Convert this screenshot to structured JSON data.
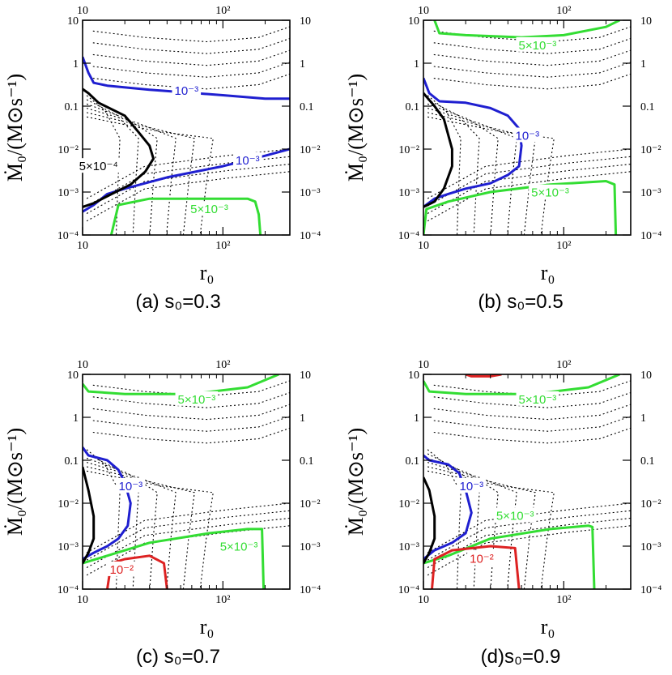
{
  "figure": {
    "name": "accretion-contour-panels"
  },
  "chart_data": [
    {
      "type": "contour",
      "panel": "a",
      "caption": "(a) s₀=0.3",
      "xlabel": "r₀",
      "ylabel": "Ṁ₀/(M⊙s⁻¹)",
      "xlim": [
        10,
        300
      ],
      "ylim": [
        0.0001,
        10
      ],
      "xscale": "log",
      "yscale": "log",
      "x_ticks": [
        "10",
        "10²"
      ],
      "y_ticks": [
        "10⁻⁴",
        "10⁻³",
        "10⁻²",
        "0.1",
        "1",
        "10"
      ],
      "contours": [
        {
          "label": "10⁻³",
          "color": "#1f1fd0",
          "label_pos": [
            55,
            0.2
          ],
          "lines": [
            [
              [
                10,
                1.4
              ],
              [
                11,
                0.6
              ],
              [
                12,
                0.35
              ],
              [
                15,
                0.3
              ],
              [
                30,
                0.24
              ],
              [
                100,
                0.18
              ],
              [
                200,
                0.15
              ],
              [
                300,
                0.15
              ]
            ],
            [
              [
                10,
                0.00035
              ],
              [
                12,
                0.0005
              ],
              [
                15,
                0.0009
              ],
              [
                20,
                0.0012
              ],
              [
                40,
                0.0022
              ],
              [
                100,
                0.004
              ],
              [
                200,
                0.007
              ],
              [
                300,
                0.01
              ]
            ]
          ]
        },
        {
          "label": "10⁻³",
          "color": "#1f1fd0",
          "label_pos": [
            150,
            0.0048
          ],
          "lines": []
        },
        {
          "label": "5×10⁻⁴",
          "color": "#000000",
          "label_pos": [
            13,
            0.0035
          ],
          "lines": [
            [
              [
                10,
                0.25
              ],
              [
                11,
                0.2
              ],
              [
                13,
                0.12
              ],
              [
                20,
                0.06
              ],
              [
                25,
                0.025
              ],
              [
                30,
                0.012
              ],
              [
                32,
                0.006
              ],
              [
                28,
                0.003
              ],
              [
                22,
                0.0015
              ],
              [
                15,
                0.0008
              ],
              [
                12,
                0.00055
              ],
              [
                10,
                0.00045
              ]
            ]
          ]
        },
        {
          "label": "5×10⁻³",
          "color": "#33dd33",
          "label_pos": [
            80,
            0.00035
          ],
          "lines": [
            [
              [
                16,
                0.0001
              ],
              [
                18,
                0.0005
              ],
              [
                30,
                0.0007
              ],
              [
                100,
                0.0007
              ],
              [
                150,
                0.0007
              ],
              [
                170,
                0.0006
              ],
              [
                180,
                0.0003
              ],
              [
                185,
                0.0001
              ]
            ]
          ]
        }
      ]
    },
    {
      "type": "contour",
      "panel": "b",
      "caption": "(b) s₀=0.5",
      "xlabel": "r₀",
      "ylabel": "Ṁ₀/(M⊙s⁻¹)",
      "xlim": [
        10,
        300
      ],
      "ylim": [
        0.0001,
        10
      ],
      "xscale": "log",
      "yscale": "log",
      "x_ticks": [
        "10",
        "10²"
      ],
      "y_ticks": [
        "10⁻⁴",
        "10⁻³",
        "10⁻²",
        "0.1",
        "1",
        "10"
      ],
      "contours": [
        {
          "label": "10⁻³",
          "color": "#1f1fd0",
          "label_pos": [
            55,
            0.018
          ],
          "lines": [
            [
              [
                10,
                0.45
              ],
              [
                11,
                0.2
              ],
              [
                13,
                0.13
              ],
              [
                20,
                0.12
              ],
              [
                30,
                0.09
              ],
              [
                40,
                0.06
              ],
              [
                48,
                0.03
              ],
              [
                50,
                0.012
              ],
              [
                48,
                0.004
              ],
              [
                40,
                0.0025
              ],
              [
                30,
                0.0016
              ],
              [
                20,
                0.0012
              ],
              [
                15,
                0.0009
              ],
              [
                12,
                0.0007
              ],
              [
                10,
                0.00045
              ]
            ]
          ]
        },
        {
          "label": "5×10⁻³",
          "color": "#33dd33",
          "label_pos": [
            65,
            2.3
          ],
          "lines": [
            [
              [
                12,
                10
              ],
              [
                13,
                5
              ],
              [
                20,
                4.5
              ],
              [
                50,
                4
              ],
              [
                100,
                4.5
              ],
              [
                200,
                7
              ],
              [
                250,
                10
              ]
            ],
            [
              [
                10,
                0.0001
              ],
              [
                10.5,
                0.0004
              ],
              [
                15,
                0.0006
              ],
              [
                30,
                0.001
              ],
              [
                80,
                0.0015
              ],
              [
                200,
                0.0018
              ],
              [
                230,
                0.0015
              ],
              [
                235,
                0.0001
              ]
            ]
          ]
        },
        {
          "label": "5×10⁻³",
          "color": "#33dd33",
          "label_pos": [
            80,
            0.00085
          ],
          "lines": []
        },
        {
          "label": "",
          "color": "#000000",
          "label_pos": null,
          "lines": [
            [
              [
                10,
                0.2
              ],
              [
                12,
                0.1
              ],
              [
                14,
                0.05
              ],
              [
                16,
                0.01
              ],
              [
                16,
                0.004
              ],
              [
                14,
                0.0012
              ],
              [
                12,
                0.0006
              ],
              [
                10,
                0.00045
              ]
            ]
          ]
        }
      ]
    },
    {
      "type": "contour",
      "panel": "c",
      "caption": "(c) s₀=0.7",
      "xlabel": "r₀",
      "ylabel": "Ṁ₀/(M⊙s⁻¹)",
      "xlim": [
        10,
        300
      ],
      "ylim": [
        0.0001,
        10
      ],
      "xscale": "log",
      "yscale": "log",
      "x_ticks": [
        "10",
        "10²"
      ],
      "y_ticks": [
        "10⁻⁴",
        "10⁻³",
        "10⁻²",
        "0.1",
        "1",
        "10"
      ],
      "contours": [
        {
          "label": "5×10⁻³",
          "color": "#33dd33",
          "label_pos": [
            65,
            2.3
          ],
          "lines": [
            [
              [
                10,
                6
              ],
              [
                11,
                4
              ],
              [
                20,
                3.5
              ],
              [
                60,
                3.5
              ],
              [
                150,
                5
              ],
              [
                250,
                10
              ]
            ],
            [
              [
                10,
                0.0004
              ],
              [
                15,
                0.0006
              ],
              [
                30,
                0.0012
              ],
              [
                80,
                0.002
              ],
              [
                150,
                0.0025
              ],
              [
                190,
                0.0025
              ],
              [
                195,
                0.0001
              ]
            ]
          ]
        },
        {
          "label": "5×10⁻³",
          "color": "#33dd33",
          "label_pos": [
            130,
            0.00085
          ],
          "lines": []
        },
        {
          "label": "10⁻³",
          "color": "#1f1fd0",
          "label_pos": [
            22,
            0.022
          ],
          "lines": [
            [
              [
                10,
                0.2
              ],
              [
                11,
                0.13
              ],
              [
                15,
                0.1
              ],
              [
                18,
                0.06
              ],
              [
                20,
                0.03
              ],
              [
                22,
                0.01
              ],
              [
                21,
                0.003
              ],
              [
                18,
                0.0015
              ],
              [
                15,
                0.001
              ],
              [
                12,
                0.0007
              ],
              [
                10,
                0.0005
              ]
            ]
          ]
        },
        {
          "label": "10⁻²",
          "color": "#dd2222",
          "label_pos": [
            19,
            0.00025
          ],
          "lines": [
            [
              [
                15,
                0.0001
              ],
              [
                16,
                0.0004
              ],
              [
                20,
                0.0005
              ],
              [
                30,
                0.0006
              ],
              [
                38,
                0.0004
              ],
              [
                40,
                0.0001
              ]
            ]
          ]
        },
        {
          "label": "",
          "color": "#000000",
          "label_pos": null,
          "lines": [
            [
              [
                10,
                0.07
              ],
              [
                11,
                0.02
              ],
              [
                12,
                0.005
              ],
              [
                12,
                0.0015
              ],
              [
                11,
                0.0007
              ],
              [
                10,
                0.0004
              ]
            ]
          ]
        }
      ]
    },
    {
      "type": "contour",
      "panel": "d",
      "caption": "(d)s₀=0.9",
      "xlabel": "r₀",
      "ylabel": "Ṁ₀/(M⊙s⁻¹)",
      "xlim": [
        10,
        300
      ],
      "ylim": [
        0.0001,
        10
      ],
      "xscale": "log",
      "yscale": "log",
      "x_ticks": [
        "10",
        "10²"
      ],
      "y_ticks": [
        "10⁻⁴",
        "10⁻³",
        "10⁻²",
        "0.1",
        "1",
        "10"
      ],
      "contours": [
        {
          "label": "5×10⁻³",
          "color": "#33dd33",
          "label_pos": [
            65,
            2.3
          ],
          "lines": [
            [
              [
                10,
                7
              ],
              [
                11,
                4
              ],
              [
                20,
                3.5
              ],
              [
                60,
                3.5
              ],
              [
                150,
                5
              ],
              [
                250,
                10
              ]
            ],
            [
              [
                10,
                0.0004
              ],
              [
                15,
                0.0006
              ],
              [
                30,
                0.0015
              ],
              [
                80,
                0.0025
              ],
              [
                150,
                0.003
              ],
              [
                160,
                0.0028
              ],
              [
                165,
                0.0001
              ]
            ]
          ]
        },
        {
          "label": "5×10⁻³",
          "color": "#33dd33",
          "label_pos": [
            45,
            0.0045
          ],
          "lines": []
        },
        {
          "label": "10⁻³",
          "color": "#1f1fd0",
          "label_pos": [
            22,
            0.022
          ],
          "lines": [
            [
              [
                10,
                0.13
              ],
              [
                11,
                0.1
              ],
              [
                15,
                0.08
              ],
              [
                18,
                0.05
              ],
              [
                20,
                0.02
              ],
              [
                22,
                0.006
              ],
              [
                20,
                0.002
              ],
              [
                16,
                0.0012
              ],
              [
                12,
                0.0008
              ],
              [
                10,
                0.0005
              ]
            ]
          ]
        },
        {
          "label": "10⁻²",
          "color": "#dd2222",
          "label_pos": [
            26,
            0.00045
          ],
          "lines": [
            [
              [
                11.5,
                0.0001
              ],
              [
                12,
                0.0005
              ],
              [
                16,
                0.0008
              ],
              [
                30,
                0.001
              ],
              [
                45,
                0.0009
              ],
              [
                48,
                0.0001
              ]
            ],
            [
              [
                20,
                10
              ],
              [
                22,
                9
              ],
              [
                30,
                9
              ],
              [
                36,
                10
              ]
            ]
          ]
        },
        {
          "label": "",
          "color": "#000000",
          "label_pos": null,
          "lines": [
            [
              [
                10,
                0.04
              ],
              [
                11,
                0.02
              ],
              [
                12,
                0.005
              ],
              [
                12,
                0.0015
              ],
              [
                11,
                0.0007
              ],
              [
                10,
                0.0004
              ]
            ]
          ]
        }
      ]
    }
  ]
}
